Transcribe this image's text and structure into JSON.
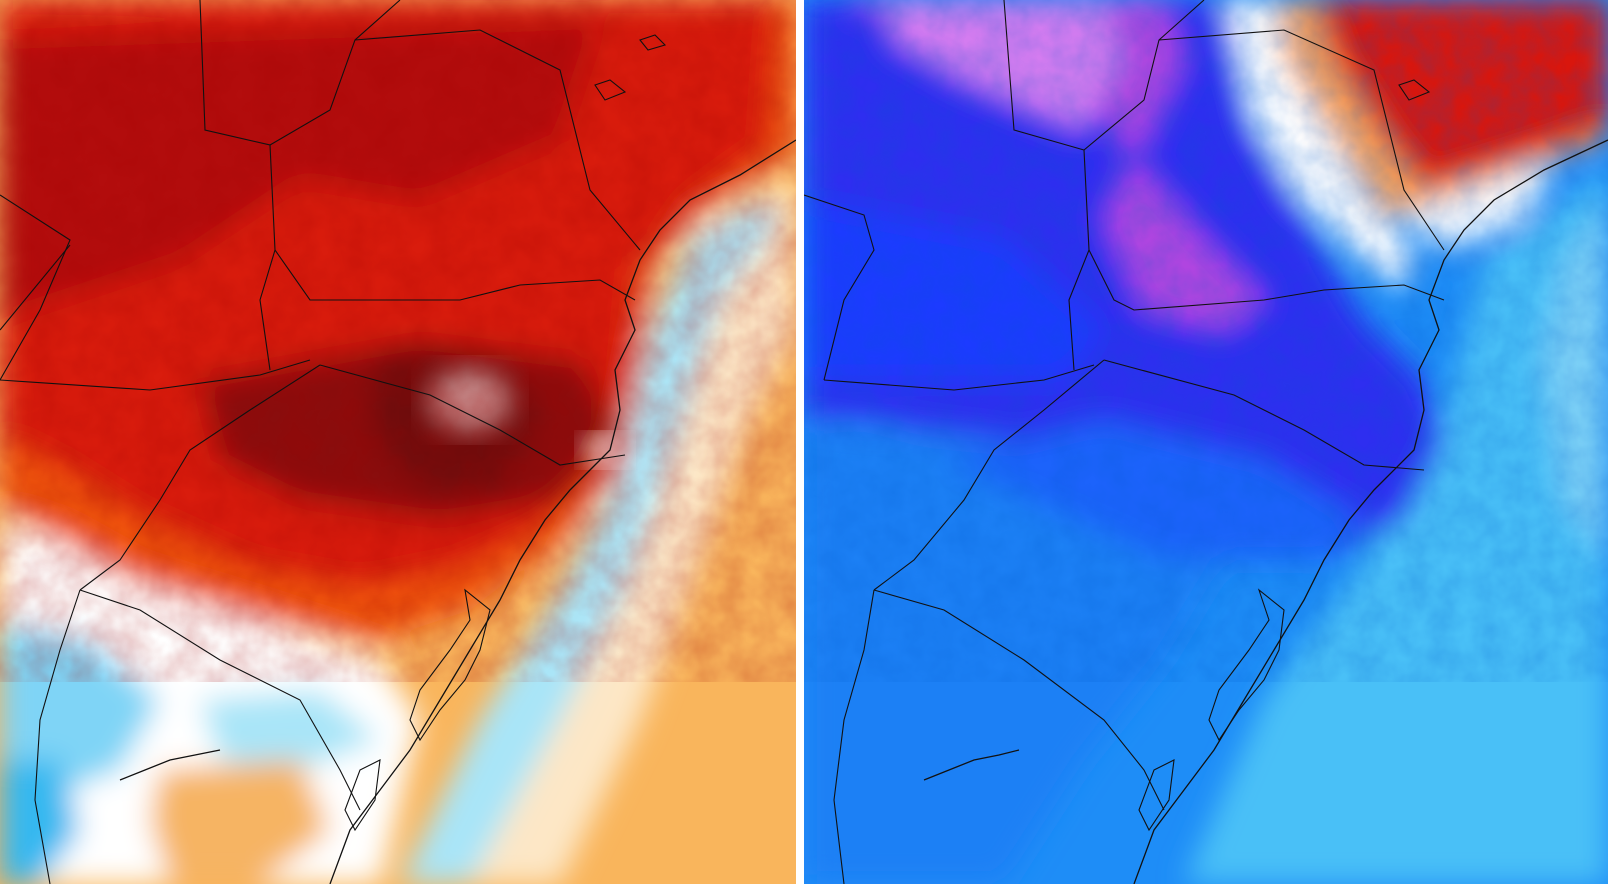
{
  "panels": [
    {
      "id": "left",
      "kind": "temperature-anomaly-warm",
      "palette": [
        "#7a0d0d",
        "#b30f0f",
        "#d91a0f",
        "#f2560f",
        "#f8a033",
        "#fde3b8",
        "#ffffff",
        "#a9e5f8",
        "#36b8f0"
      ]
    },
    {
      "id": "right",
      "kind": "temperature-anomaly-cold",
      "palette": [
        "#b044e0",
        "#d47cf0",
        "#3333f0",
        "#1d4fff",
        "#1e8df7",
        "#48c0f7",
        "#a9e5f8",
        "#ffffff",
        "#f4a35f",
        "#d9180f"
      ]
    }
  ],
  "colors": {
    "divider": "#ffffff",
    "border_lines": "#111111"
  }
}
